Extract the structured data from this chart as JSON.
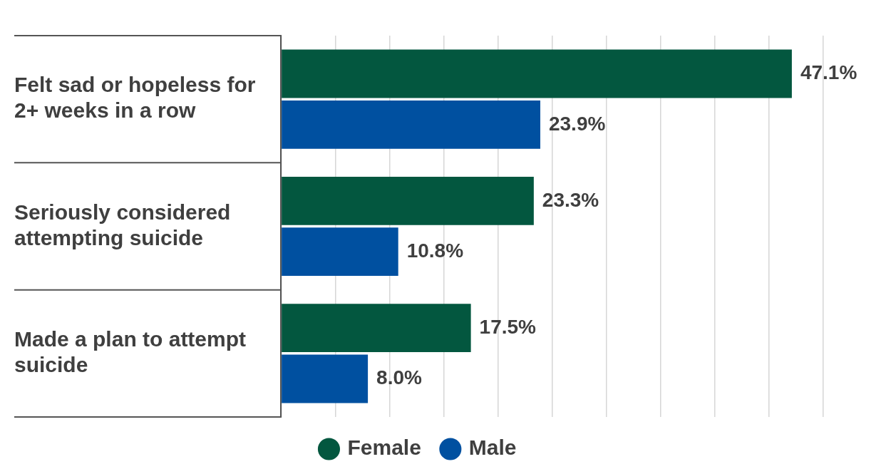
{
  "chart_data": {
    "type": "bar",
    "orientation": "horizontal",
    "categories": [
      "Felt sad or hopeless for 2+ weeks in a row",
      "Seriously considered attempting suicide",
      "Made a plan to attempt suicide"
    ],
    "series": [
      {
        "name": "Female",
        "color": "#03573f",
        "values": [
          47.1,
          23.3,
          17.5
        ],
        "value_labels": [
          "47.1%",
          "23.3%",
          "17.5%"
        ]
      },
      {
        "name": "Male",
        "color": "#0050a0",
        "values": [
          23.9,
          10.8,
          8.0
        ],
        "value_labels": [
          "23.9%",
          "10.8%",
          "8.0%"
        ]
      }
    ],
    "xlim": [
      0,
      50
    ],
    "xticks": [
      {
        "value": 0,
        "label": null
      },
      {
        "value": 5,
        "label": null
      },
      {
        "value": 10,
        "label": null
      },
      {
        "value": 15,
        "label": null
      },
      {
        "value": 20,
        "label": null
      },
      {
        "value": 25,
        "label": null
      },
      {
        "value": 30,
        "label": null
      },
      {
        "value": 35,
        "label": null
      },
      {
        "value": 40,
        "label": null
      },
      {
        "value": 45,
        "label": null
      },
      {
        "value": 50,
        "label": null
      }
    ],
    "tick_labels": "y",
    "grid": "x",
    "legend": "bottom",
    "marker": "circle"
  }
}
